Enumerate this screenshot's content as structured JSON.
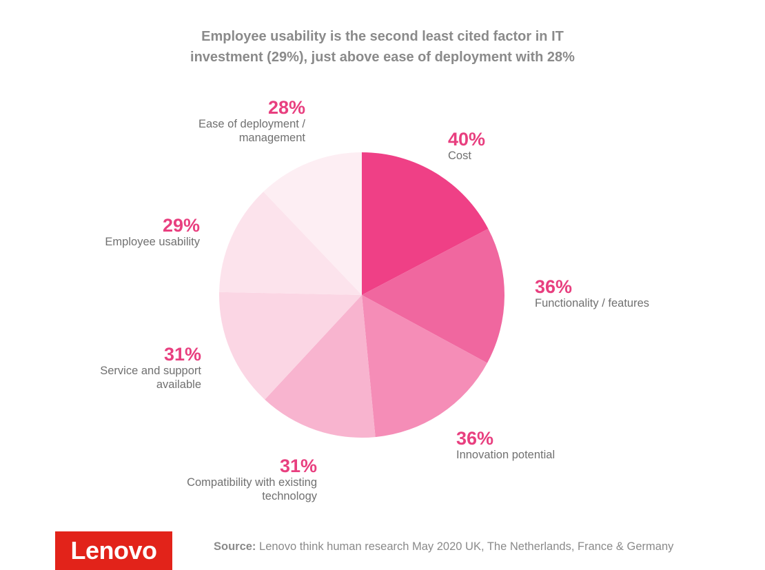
{
  "title_line1": "Employee usability is the second least cited factor in IT",
  "title_line2": "investment (29%), just above ease of deployment with 28%",
  "chart_data": {
    "type": "pie",
    "slices": [
      {
        "pct_label": "40%",
        "label_line1": "Cost",
        "label_line2": "",
        "value": 40,
        "color": "#ef4086"
      },
      {
        "pct_label": "36%",
        "label_line1": "Functionality / features",
        "label_line2": "",
        "value": 36,
        "color": "#f0679f"
      },
      {
        "pct_label": "36%",
        "label_line1": "Innovation potential",
        "label_line2": "",
        "value": 36,
        "color": "#f58db7"
      },
      {
        "pct_label": "31%",
        "label_line1": "Compatibility with existing",
        "label_line2": "technology",
        "value": 31,
        "color": "#f8b4cf"
      },
      {
        "pct_label": "31%",
        "label_line1": "Service and support",
        "label_line2": "available",
        "value": 31,
        "color": "#fbd6e4"
      },
      {
        "pct_label": "29%",
        "label_line1": "Employee usability",
        "label_line2": "",
        "value": 29,
        "color": "#fce3ec"
      },
      {
        "pct_label": "28%",
        "label_line1": "Ease of deployment /",
        "label_line2": "management",
        "value": 28,
        "color": "#fdeef3"
      }
    ]
  },
  "logo_text": "Lenovo",
  "source_prefix": "Source:",
  "source_text": "Lenovo think human research May 2020 UK, The Netherlands, France & Germany"
}
